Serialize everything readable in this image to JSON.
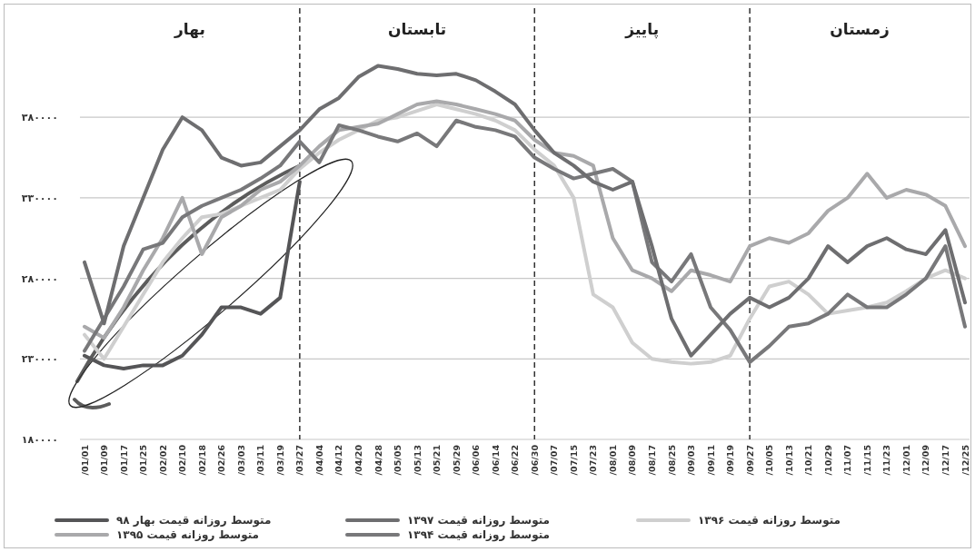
{
  "chart_data": {
    "type": "line",
    "categories": [
      "/01/01",
      "/01/09",
      "/01/17",
      "/01/25",
      "/02/02",
      "/02/10",
      "/02/18",
      "/02/26",
      "/03/03",
      "/03/11",
      "/03/19",
      "/03/27",
      "/04/04",
      "/04/12",
      "/04/20",
      "/04/28",
      "/05/05",
      "/05/13",
      "/05/21",
      "/05/29",
      "/06/06",
      "/06/14",
      "/06/22",
      "/06/30",
      "/07/07",
      "/07/15",
      "/07/23",
      "/08/01",
      "/08/09",
      "/08/17",
      "/08/25",
      "/09/03",
      "/09/11",
      "/09/19",
      "/09/27",
      "/10/05",
      "/10/13",
      "/10/21",
      "/10/29",
      "/11/07",
      "/11/15",
      "/11/23",
      "/12/01",
      "/12/09",
      "/12/17",
      "/12/25"
    ],
    "ylim": [
      180000,
      450000
    ],
    "yticks": [
      {
        "value": 180000,
        "label": "۱۸۰۰۰۰"
      },
      {
        "value": 230000,
        "label": "۲۳۰۰۰۰"
      },
      {
        "value": 280000,
        "label": "۲۸۰۰۰۰"
      },
      {
        "value": 330000,
        "label": "۳۳۰۰۰۰"
      },
      {
        "value": 380000,
        "label": "۳۸۰۰۰۰"
      }
    ],
    "grid": "y",
    "legend": "bottom",
    "annotations": [
      "بهار",
      "تابستان",
      "پاییز",
      "زمستان"
    ],
    "ref_lines": [
      {
        "axis": "x",
        "value": "/03/27",
        "line_style": "dashed",
        "color": "#333333"
      },
      {
        "axis": "x",
        "value": "/06/30",
        "line_style": "dashed",
        "color": "#333333"
      },
      {
        "axis": "x",
        "value": "/09/27",
        "line_style": "dashed",
        "color": "#333333"
      }
    ],
    "series": [
      {
        "name": "متوسط روزانه قیمت ۱۳۹۶",
        "color": "#cfcfcf",
        "values": [
          245000,
          230000,
          250000,
          270000,
          290000,
          305000,
          318000,
          320000,
          325000,
          330000,
          335000,
          348000,
          358000,
          366000,
          372000,
          378000,
          380000,
          384000,
          388000,
          385000,
          382000,
          378000,
          372000,
          360000,
          350000,
          330000,
          270000,
          262000,
          240000,
          230000,
          228000,
          227000,
          228000,
          232000,
          255000,
          275000,
          278000,
          270000,
          258000,
          260000,
          262000,
          265000,
          272000,
          280000,
          285000,
          280000
        ]
      },
      {
        "name": "متوسط روزانه قیمت ۱۳۹۵",
        "color": "#a9a9ab",
        "values": [
          250000,
          243000,
          262000,
          285000,
          305000,
          330000,
          295000,
          318000,
          325000,
          335000,
          340000,
          350000,
          362000,
          372000,
          374000,
          376000,
          382000,
          388000,
          390000,
          388000,
          385000,
          382000,
          378000,
          366000,
          358000,
          356000,
          350000,
          305000,
          285000,
          280000,
          272000,
          285000,
          282000,
          278000,
          300000,
          305000,
          302000,
          308000,
          322000,
          330000,
          345000,
          330000,
          335000,
          332000,
          325000,
          300000
        ]
      },
      {
        "name": "متوسط روزانه قیمت ۱۳۹۴",
        "color": "#78787a",
        "values": [
          235000,
          255000,
          275000,
          298000,
          302000,
          318000,
          325000,
          330000,
          335000,
          342000,
          350000,
          365000,
          352000,
          375000,
          372000,
          368000,
          365000,
          370000,
          362000,
          378000,
          374000,
          372000,
          368000,
          355000,
          348000,
          342000,
          345000,
          348000,
          340000,
          290000,
          278000,
          295000,
          262000,
          248000,
          228000,
          238000,
          250000,
          252000,
          258000,
          270000,
          262000,
          262000,
          270000,
          280000,
          300000,
          250000
        ]
      },
      {
        "name": "متوسط روزانه قیمت ۱۳۹۷",
        "color": "#6e6e70",
        "values": [
          290000,
          252000,
          300000,
          330000,
          360000,
          380000,
          372000,
          355000,
          350000,
          352000,
          362000,
          372000,
          385000,
          392000,
          405000,
          412000,
          410000,
          407000,
          406000,
          407000,
          403000,
          396000,
          388000,
          372000,
          358000,
          350000,
          340000,
          335000,
          340000,
          300000,
          255000,
          232000,
          245000,
          258000,
          268000,
          262000,
          268000,
          280000,
          300000,
          290000,
          300000,
          305000,
          298000,
          295000,
          310000,
          265000
        ]
      },
      {
        "name": "متوسط روزانه قیمت بهار ۹۸",
        "color": "#555557",
        "values": [
          232000,
          226000,
          224000,
          226000,
          226000,
          232000,
          245000,
          262000,
          262000,
          258000,
          268000,
          340000,
          null,
          null,
          null,
          null,
          null,
          null,
          null,
          null,
          null,
          null,
          null,
          null,
          null,
          null,
          null,
          null,
          null,
          null,
          null,
          null,
          null,
          null,
          null,
          null,
          null,
          null,
          null,
          null,
          null,
          null,
          null,
          null,
          null,
          null
        ]
      }
    ]
  }
}
